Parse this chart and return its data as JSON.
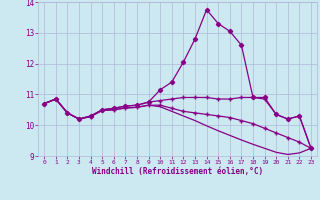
{
  "xlabel": "Windchill (Refroidissement éolien,°C)",
  "hours": [
    0,
    1,
    2,
    3,
    4,
    5,
    6,
    7,
    8,
    9,
    10,
    11,
    12,
    13,
    14,
    15,
    16,
    17,
    18,
    19,
    20,
    21,
    22,
    23
  ],
  "line_peak": [
    10.7,
    10.85,
    10.4,
    10.2,
    10.3,
    10.5,
    10.55,
    10.62,
    10.65,
    10.75,
    11.15,
    11.4,
    12.05,
    12.8,
    13.75,
    13.3,
    13.05,
    12.6,
    10.9,
    10.9,
    10.35,
    10.2,
    10.3,
    9.25
  ],
  "line_flat": [
    10.7,
    10.85,
    10.4,
    10.2,
    10.3,
    10.5,
    10.55,
    10.62,
    10.65,
    10.75,
    10.8,
    10.85,
    10.9,
    10.9,
    10.9,
    10.85,
    10.85,
    10.9,
    10.9,
    10.85,
    10.35,
    10.2,
    10.3,
    9.25
  ],
  "line_mid": [
    10.7,
    10.85,
    10.4,
    10.2,
    10.28,
    10.48,
    10.5,
    10.56,
    10.58,
    10.65,
    10.65,
    10.55,
    10.45,
    10.4,
    10.35,
    10.3,
    10.25,
    10.15,
    10.05,
    9.9,
    9.75,
    9.6,
    9.45,
    9.25
  ],
  "line_low": [
    10.7,
    10.85,
    10.4,
    10.2,
    10.28,
    10.48,
    10.5,
    10.56,
    10.58,
    10.65,
    10.6,
    10.45,
    10.3,
    10.15,
    9.98,
    9.82,
    9.67,
    9.52,
    9.38,
    9.25,
    9.12,
    9.05,
    9.1,
    9.25
  ],
  "bg_color": "#cce8f0",
  "grid_color": "#b0b8d8",
  "line_color": "#880088",
  "ylim": [
    9,
    14
  ],
  "xlim": [
    -0.5,
    23.5
  ]
}
